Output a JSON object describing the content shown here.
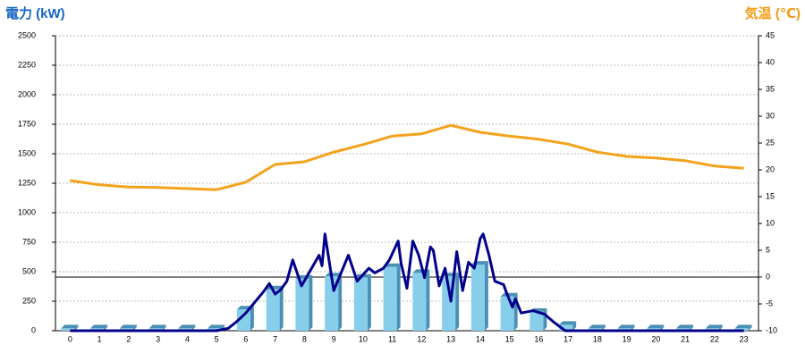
{
  "chart_data": {
    "type": "combo",
    "ylabel": "電力 (kW)",
    "y2label": "気温 (℃)",
    "categories": [
      "0",
      "1",
      "2",
      "3",
      "4",
      "5",
      "6",
      "7",
      "8",
      "9",
      "10",
      "11",
      "12",
      "13",
      "14",
      "15",
      "16",
      "17",
      "18",
      "19",
      "20",
      "21",
      "22",
      "23"
    ],
    "xlim": [
      -0.5,
      23.5
    ],
    "ylim": [
      0,
      2500
    ],
    "yticks": [
      0,
      250,
      500,
      750,
      1000,
      1250,
      1500,
      1750,
      2000,
      2250,
      2500
    ],
    "y2lim": [
      -10,
      45
    ],
    "y2ticks": [
      -10,
      -5,
      0,
      5,
      10,
      15,
      20,
      25,
      30,
      35,
      40,
      45
    ],
    "grid": true,
    "y2_reference_line": 0,
    "series": [
      {
        "type": "bar",
        "color": "#87ceeb",
        "side_color": "#4a8fb5",
        "values": [
          20,
          20,
          20,
          20,
          20,
          20,
          180,
          350,
          440,
          460,
          450,
          540,
          490,
          460,
          560,
          290,
          160,
          50,
          20,
          20,
          20,
          20,
          20,
          20
        ]
      },
      {
        "type": "line",
        "axis": "y2",
        "color": "#f5a21b",
        "values": [
          18,
          17.2,
          16.8,
          16.7,
          16.5,
          16.3,
          17.7,
          21,
          21.5,
          23.3,
          24.7,
          26.3,
          26.7,
          28.3,
          27,
          26.3,
          25.7,
          24.8,
          23.3,
          22.5,
          22.2,
          21.7,
          20.7,
          20.3
        ]
      },
      {
        "type": "line",
        "color": "#00008b",
        "x": [
          0,
          5.0,
          5.4,
          5.7,
          6.0,
          6.3,
          6.6,
          6.8,
          7.0,
          7.2,
          7.4,
          7.6,
          7.9,
          8.5,
          8.6,
          8.7,
          9.0,
          9.5,
          9.8,
          10.2,
          10.4,
          10.7,
          10.9,
          11.2,
          11.3,
          11.5,
          11.7,
          11.9,
          12.1,
          12.3,
          12.4,
          12.6,
          12.8,
          13.0,
          13.2,
          13.4,
          13.6,
          13.8,
          14.0,
          14.1,
          14.3,
          14.5,
          14.8,
          14.9,
          15.1,
          15.2,
          15.4,
          15.8,
          16.2,
          16.5,
          16.9,
          23
        ],
        "values": [
          0,
          0,
          20,
          80,
          150,
          240,
          330,
          400,
          310,
          350,
          420,
          600,
          380,
          640,
          550,
          820,
          340,
          640,
          420,
          530,
          490,
          530,
          600,
          760,
          570,
          360,
          760,
          640,
          450,
          710,
          680,
          380,
          530,
          250,
          670,
          340,
          580,
          530,
          780,
          820,
          640,
          420,
          390,
          320,
          200,
          270,
          150,
          170,
          140,
          75,
          0,
          0
        ]
      }
    ]
  }
}
